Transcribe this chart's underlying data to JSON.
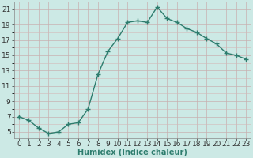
{
  "x": [
    0,
    1,
    2,
    3,
    4,
    5,
    6,
    7,
    8,
    9,
    10,
    11,
    12,
    13,
    14,
    15,
    16,
    17,
    18,
    19,
    20,
    21,
    22,
    23
  ],
  "y": [
    7.0,
    6.5,
    5.5,
    4.8,
    5.0,
    6.0,
    6.2,
    8.0,
    12.5,
    15.5,
    17.2,
    19.3,
    19.5,
    19.3,
    21.3,
    19.8,
    19.3,
    18.5,
    18.0,
    17.2,
    16.5,
    15.3,
    15.0,
    14.5
  ],
  "line_color": "#2e7d6e",
  "marker": "+",
  "marker_size": 5,
  "line_width": 1.0,
  "bg_color": "#cce9e5",
  "grid_color_major": "#b8d8d4",
  "grid_color_minor": "#d4ecea",
  "xlabel": "Humidex (Indice chaleur)",
  "xlabel_fontsize": 7,
  "yticks": [
    5,
    7,
    9,
    11,
    13,
    15,
    17,
    19,
    21
  ],
  "ylim": [
    4.2,
    22.0
  ],
  "xlim": [
    -0.5,
    23.5
  ],
  "xtick_labels": [
    "0",
    "1",
    "2",
    "3",
    "4",
    "5",
    "6",
    "7",
    "8",
    "9",
    "10",
    "11",
    "12",
    "13",
    "14",
    "15",
    "16",
    "17",
    "18",
    "19",
    "20",
    "21",
    "22",
    "23"
  ],
  "tick_fontsize": 6.5
}
